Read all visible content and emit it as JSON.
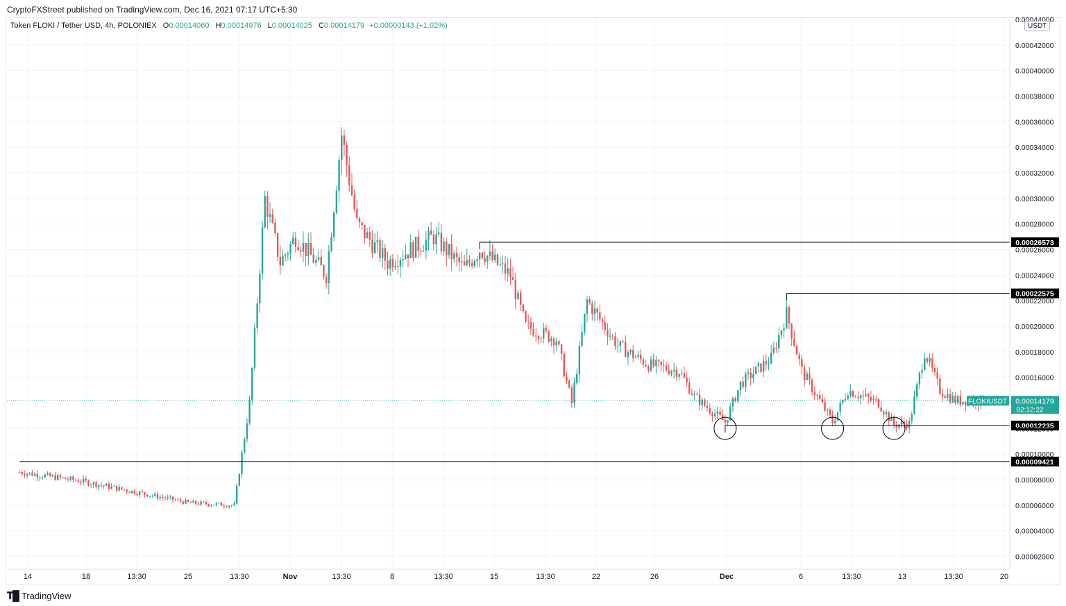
{
  "header": {
    "published_by": "CryptoFXStreet published on TradingView.com, Dec 16, 2021 07:17 UTC+5:30"
  },
  "legend": {
    "symbol": "Token FLOKI / Tether USD, 4h, POLONIEX",
    "open_label": "O",
    "open": "0.00014060",
    "high_label": "H",
    "high": "0.00014976",
    "low_label": "L",
    "low": "0.00014025",
    "close_label": "C",
    "close": "0.00014179",
    "change": "+0.00000143 (+1.02%)"
  },
  "currency_badge": "USDT",
  "footer": {
    "brand": "TradingView",
    "logo_icon": "tradingview-logo-icon"
  },
  "colors": {
    "up": "#26a69a",
    "down": "#ef5350",
    "grid": "#f0f3fa",
    "axis_text": "#131722",
    "level_fill": "#000000",
    "last_price_fill": "#26a69a"
  },
  "chart_data": {
    "type": "candlestick",
    "symbol": "FLOKIUSDT",
    "timeframe": "4h",
    "ylim": [
      1e-05,
      0.00044
    ],
    "y_ticks": [
      "0.00002000",
      "0.00004000",
      "0.00006000",
      "0.00008000",
      "0.00010000",
      "0.00012000",
      "0.00014000",
      "0.00016000",
      "0.00018000",
      "0.00020000",
      "0.00022000",
      "0.00024000",
      "0.00026000",
      "0.00028000",
      "0.00030000",
      "0.00032000",
      "0.00034000",
      "0.00036000",
      "0.00038000",
      "0.00040000",
      "0.00042000",
      "0.00044000"
    ],
    "x_ticks": [
      "14",
      "18",
      "13:30",
      "25",
      "13:30",
      "Nov",
      "13:30",
      "8",
      "13:30",
      "15",
      "13:30",
      "22",
      "26",
      "Dec",
      "6",
      "13:30",
      "13",
      "13:30",
      "20"
    ],
    "candle_series": [
      {
        "date": "Oct 14",
        "close": 8.6e-05
      },
      {
        "date": "Oct 18",
        "close": 7.9e-05
      },
      {
        "date": "Oct 25",
        "close": 6.2e-05
      },
      {
        "date": "Oct 28",
        "close": 6e-05
      },
      {
        "date": "Oct 29",
        "close": 0.00014
      },
      {
        "date": "Oct 30",
        "close": 0.0003
      },
      {
        "date": "Oct 31",
        "close": 0.00025
      },
      {
        "date": "Nov 1",
        "close": 0.00027
      },
      {
        "date": "Nov 3",
        "close": 0.00024
      },
      {
        "date": "Nov 4",
        "close": 0.00035
      },
      {
        "date": "Nov 5",
        "close": 0.00028
      },
      {
        "date": "Nov 7",
        "close": 0.00025
      },
      {
        "date": "Nov 10",
        "close": 0.00027
      },
      {
        "date": "Nov 12",
        "close": 0.000245
      },
      {
        "date": "Nov 13",
        "close": 0.00026
      },
      {
        "date": "Nov 15",
        "close": 0.00024
      },
      {
        "date": "Nov 16",
        "close": 0.0002
      },
      {
        "date": "Nov 18",
        "close": 0.00019
      },
      {
        "date": "Nov 19",
        "close": 0.00014
      },
      {
        "date": "Nov 20",
        "close": 0.00022
      },
      {
        "date": "Nov 22",
        "close": 0.000185
      },
      {
        "date": "Nov 24",
        "close": 0.00017
      },
      {
        "date": "Nov 26",
        "close": 0.000165
      },
      {
        "date": "Nov 27",
        "close": 0.000145
      },
      {
        "date": "Nov 29",
        "close": 0.000125
      },
      {
        "date": "Nov 30",
        "close": 0.000155
      },
      {
        "date": "Dec 2",
        "close": 0.000175
      },
      {
        "date": "Dec 3",
        "close": 0.00021
      },
      {
        "date": "Dec 4",
        "close": 0.000165
      },
      {
        "date": "Dec 5",
        "close": 0.000145
      },
      {
        "date": "Dec 6",
        "close": 0.000125
      },
      {
        "date": "Dec 7",
        "close": 0.00015
      },
      {
        "date": "Dec 9",
        "close": 0.00014
      },
      {
        "date": "Dec 10",
        "close": 0.000123
      },
      {
        "date": "Dec 11",
        "close": 0.000124
      },
      {
        "date": "Dec 12",
        "close": 0.00018
      },
      {
        "date": "Dec 13",
        "close": 0.00015
      },
      {
        "date": "Dec 14",
        "close": 0.000142
      },
      {
        "date": "Dec 16",
        "close": 0.00014179
      }
    ],
    "horizontal_levels": [
      {
        "label": "0.00026573",
        "value": 0.00026573,
        "start_date": "Nov 13"
      },
      {
        "label": "0.00022575",
        "value": 0.00022575,
        "start_date": "Dec 3"
      },
      {
        "label": "0.00012235",
        "value": 0.00012235,
        "start_date": "Nov 29"
      },
      {
        "label": "0.00009421",
        "value": 9.421e-05,
        "start_date": "Oct 14"
      }
    ],
    "support_touches": [
      "Nov 29",
      "Dec 6",
      "Dec 10"
    ],
    "last_price": {
      "symbol": "FLOKIUSDT",
      "value": "0.00014179",
      "countdown": "02:12:22"
    }
  }
}
